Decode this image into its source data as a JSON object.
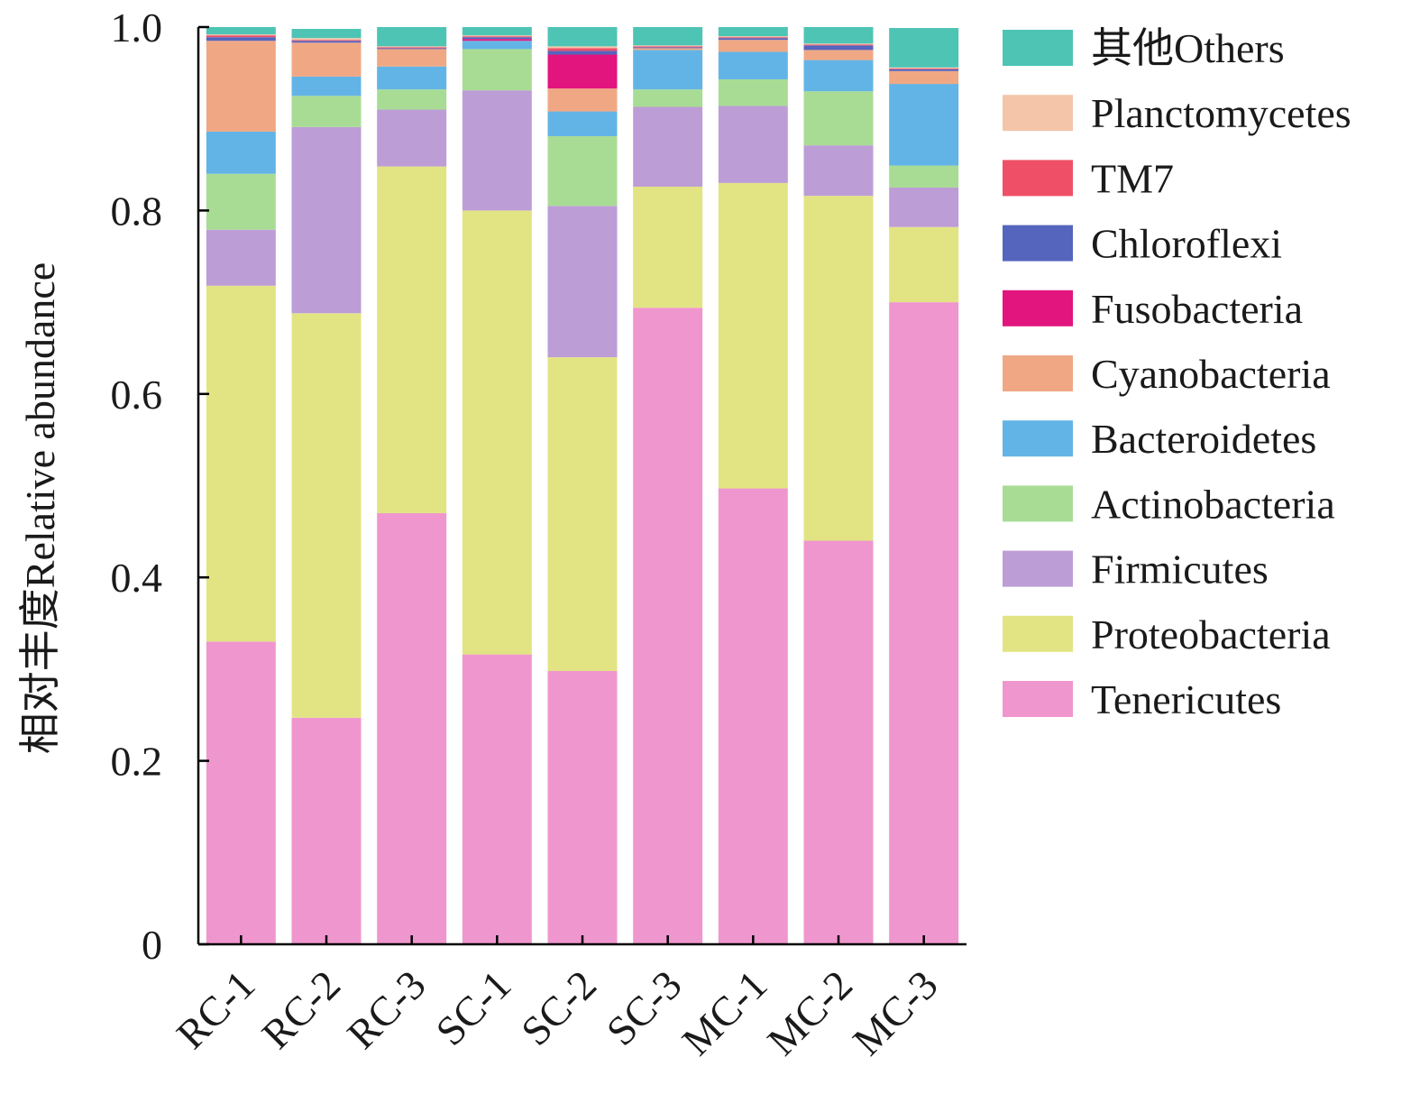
{
  "chart_data": {
    "type": "bar",
    "stacked": true,
    "title": "",
    "xlabel": "",
    "ylabel": "相对丰度Relative abundance",
    "ylim": [
      0,
      1
    ],
    "yticks": [
      "0",
      "0.2",
      "0.4",
      "0.6",
      "0.8",
      "1.0"
    ],
    "ytick_values": [
      0,
      0.2,
      0.4,
      0.6,
      0.8,
      1.0
    ],
    "categories": [
      "RC-1",
      "RC-2",
      "RC-3",
      "SC-1",
      "SC-2",
      "SC-3",
      "MC-1",
      "MC-2",
      "MC-3"
    ],
    "legend_position": "right",
    "series": [
      {
        "name": "Tenericutes",
        "color": "#f096ce",
        "values": [
          0.33,
          0.247,
          0.47,
          0.316,
          0.298,
          0.694,
          0.497,
          0.44,
          0.7
        ]
      },
      {
        "name": "Proteobacteria",
        "color": "#e2e484",
        "values": [
          0.388,
          0.441,
          0.378,
          0.484,
          0.342,
          0.132,
          0.333,
          0.376,
          0.082
        ]
      },
      {
        "name": "Firmicutes",
        "color": "#bd9dd6",
        "values": [
          0.061,
          0.203,
          0.062,
          0.131,
          0.165,
          0.087,
          0.084,
          0.055,
          0.043
        ]
      },
      {
        "name": "Actinobacteria",
        "color": "#a8dc95",
        "values": [
          0.061,
          0.034,
          0.022,
          0.045,
          0.076,
          0.019,
          0.029,
          0.059,
          0.024
        ]
      },
      {
        "name": "Bacteroidetes",
        "color": "#63b4e6",
        "values": [
          0.046,
          0.021,
          0.025,
          0.009,
          0.027,
          0.043,
          0.03,
          0.034,
          0.089
        ]
      },
      {
        "name": "Cyanobacteria",
        "color": "#f0a884",
        "values": [
          0.099,
          0.037,
          0.019,
          0.0,
          0.025,
          0.002,
          0.013,
          0.011,
          0.014
        ]
      },
      {
        "name": "Fusobacteria",
        "color": "#e2147e",
        "values": [
          0.0,
          0.0,
          0.0,
          0.002,
          0.037,
          0.0,
          0.0,
          0.0,
          0.0
        ]
      },
      {
        "name": "Chloroflexi",
        "color": "#5565bd",
        "values": [
          0.004,
          0.002,
          0.001,
          0.002,
          0.004,
          0.001,
          0.002,
          0.005,
          0.002
        ]
      },
      {
        "name": "TM7",
        "color": "#ef5068",
        "values": [
          0.002,
          0.001,
          0.001,
          0.001,
          0.003,
          0.001,
          0.001,
          0.001,
          0.001
        ]
      },
      {
        "name": "Planctomycetes",
        "color": "#f5c5a9",
        "values": [
          0.001,
          0.002,
          0.001,
          0.001,
          0.002,
          0.001,
          0.001,
          0.001,
          0.001
        ]
      },
      {
        "name": "其他Others",
        "color": "#4ec4b5",
        "values": [
          0.008,
          0.01,
          0.021,
          0.009,
          0.021,
          0.02,
          0.01,
          0.018,
          0.043
        ]
      }
    ]
  }
}
